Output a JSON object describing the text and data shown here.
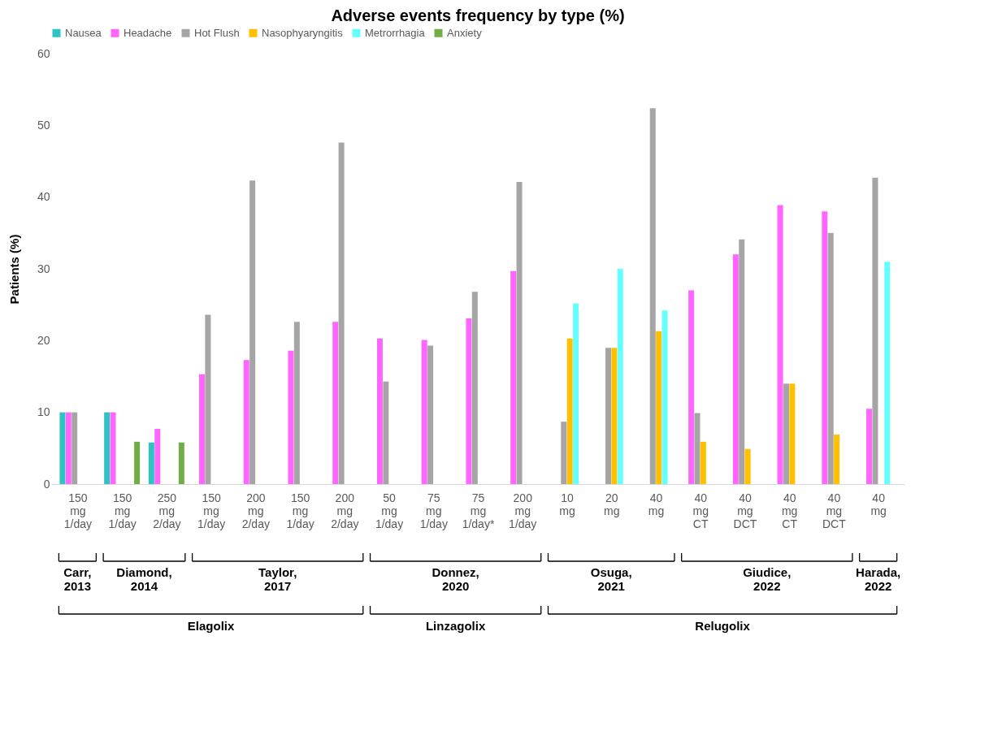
{
  "chart_data": {
    "type": "bar",
    "title": "Adverse events frequency by type (%)",
    "ylabel": "Patients (%)",
    "categories": [
      "150 mg 1/day",
      "150 mg 1/day",
      "250 mg 2/day",
      "150 mg 1/day",
      "200 mg 2/day",
      "150 mg 1/day",
      "200 mg 2/day",
      "50 mg 1/day",
      "75 mg 1/day",
      "75 mg 1/day*",
      "200 mg 1/day",
      "10 mg",
      "20 mg",
      "40 mg",
      "40 mg CT",
      "40 mg DCT",
      "40 mg CT",
      "40 mg DCT",
      "40 mg"
    ],
    "series": [
      {
        "name": "Nausea",
        "color": "#2ec4c4",
        "values": [
          10,
          10,
          5.8,
          null,
          null,
          null,
          null,
          null,
          null,
          null,
          null,
          null,
          null,
          null,
          null,
          null,
          null,
          null,
          null
        ]
      },
      {
        "name": "Headache",
        "color": "#ff66ff",
        "values": [
          10,
          10,
          7.7,
          15.3,
          17.3,
          18.6,
          22.6,
          20.3,
          20.1,
          23.1,
          29.7,
          null,
          null,
          null,
          27.0,
          32.0,
          38.9,
          38.0,
          10.5
        ]
      },
      {
        "name": "Hot Flush",
        "color": "#a5a5a5",
        "values": [
          10,
          null,
          null,
          23.6,
          42.3,
          22.6,
          47.6,
          14.3,
          19.3,
          26.8,
          42.1,
          8.7,
          19.0,
          52.4,
          9.9,
          34.1,
          14.0,
          35.0,
          42.7
        ]
      },
      {
        "name": "Nasophyaryngitis",
        "color": "#ffc000",
        "values": [
          null,
          null,
          null,
          null,
          null,
          null,
          null,
          null,
          null,
          null,
          null,
          20.3,
          19.0,
          21.3,
          5.9,
          4.9,
          14.0,
          6.9,
          null
        ]
      },
      {
        "name": "Metrorrhagia",
        "color": "#66ffff",
        "values": [
          null,
          null,
          null,
          null,
          null,
          null,
          null,
          null,
          null,
          null,
          null,
          25.2,
          30.0,
          24.2,
          null,
          null,
          null,
          null,
          31.0
        ]
      },
      {
        "name": "Anxiety",
        "color": "#70ad47",
        "values": [
          null,
          5.9,
          5.8,
          null,
          null,
          null,
          null,
          null,
          null,
          null,
          null,
          null,
          null,
          null,
          null,
          null,
          null,
          null,
          null
        ]
      }
    ],
    "ylim": [
      0,
      60
    ],
    "yticks": [
      0,
      10,
      20,
      30,
      40,
      50,
      60
    ],
    "grid": false,
    "legend": "top",
    "annotations": [
      "Carr, 2013",
      "Diamond, 2014",
      "Taylor, 2017",
      "Donnez, 2020",
      "Osuga, 2021",
      "Giudice, 2022",
      "Harada, 2022",
      "Elagolix",
      "Linzagolix",
      "Relugolix"
    ]
  }
}
